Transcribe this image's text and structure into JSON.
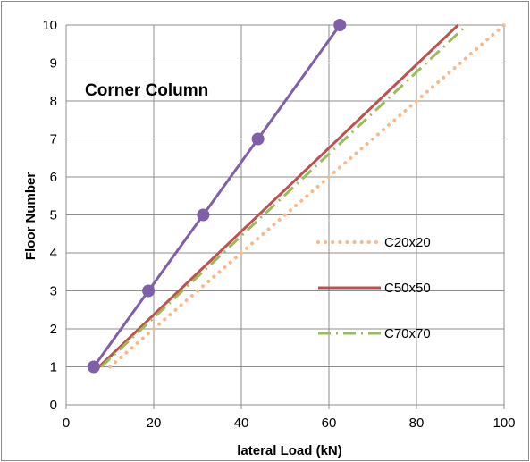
{
  "chart_data": {
    "type": "line",
    "title": "",
    "annotation": "Corner Column",
    "xlabel": "lateral Load (kN)",
    "ylabel": "Floor Number",
    "xlim": [
      0,
      100
    ],
    "ylim": [
      0,
      10
    ],
    "xticks": [
      0,
      20,
      40,
      60,
      80,
      100
    ],
    "yticks": [
      0,
      1,
      2,
      3,
      4,
      5,
      6,
      7,
      8,
      9,
      10
    ],
    "grid": true,
    "legend_position": "right",
    "series": [
      {
        "name": "",
        "color": "#7f5fa8",
        "style": "solid-markers",
        "x": [
          6.3,
          18.8,
          31.3,
          43.8,
          62.5
        ],
        "y": [
          1,
          3,
          5,
          7,
          10
        ]
      },
      {
        "name": "C20x20",
        "color": "#f8b98a",
        "style": "dotted",
        "x": [
          10.0,
          100.0
        ],
        "y": [
          1,
          10
        ]
      },
      {
        "name": "C50x50",
        "color": "#c0504d",
        "style": "solid",
        "x": [
          7.5,
          89.5
        ],
        "y": [
          1,
          10
        ]
      },
      {
        "name": "C70x70",
        "color": "#9bbb59",
        "style": "dash-dot",
        "x": [
          8.0,
          91.5
        ],
        "y": [
          1,
          10
        ]
      }
    ]
  }
}
